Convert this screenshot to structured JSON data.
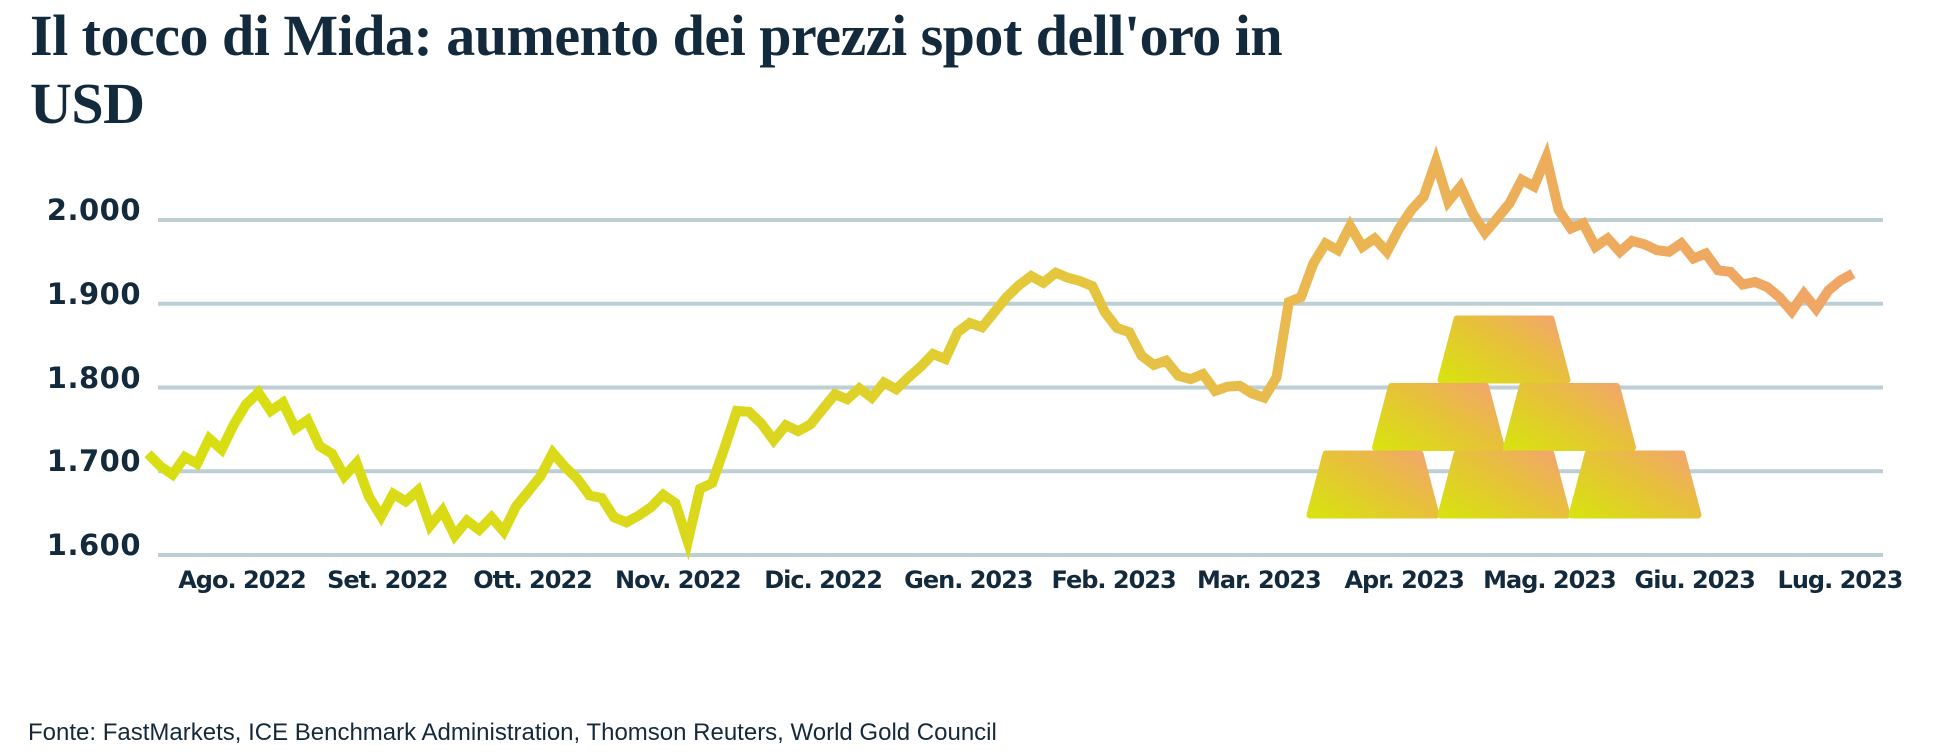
{
  "title": {
    "full": "Il tocco di Mida: aumento dei prezzi spot dell'oro in USD",
    "lines": [
      "Il tocco di Mida: aumento dei prezzi spot dell'oro in",
      "USD"
    ]
  },
  "source": "Fonte: FastMarkets, ICE Benchmark Administration, Thomson Reuters, World Gold Council",
  "colors": {
    "title_navy": "#132a3d",
    "gridline": "#bccfd4",
    "line_gradient_start": "#d8df10",
    "line_gradient_mid": "#e3ca38",
    "line_gradient_end": "#f0a566",
    "bar_gradient_start": "#d9e013",
    "bar_gradient_mid": "#e7c13a",
    "bar_gradient_end": "#f2a76b"
  },
  "illustration": {
    "name": "gold-bars-pyramid",
    "rows": [
      1,
      2,
      3
    ]
  },
  "chart_data": {
    "type": "line",
    "title": "Il tocco di Mida: aumento dei prezzi spot dell'oro in USD",
    "xlabel": "",
    "ylabel": "",
    "unit": "USD",
    "grid": "horizontal",
    "legend": false,
    "ylim": [
      1600,
      2075
    ],
    "y_gridline_range": [
      1600,
      2000
    ],
    "y_tick_values": [
      2000,
      1900,
      1800,
      1700,
      1600
    ],
    "y_tick_labels": [
      "2.000",
      "1.900",
      "1.800",
      "1.700",
      "1.600"
    ],
    "x_tick_labels": [
      "Ago. 2022",
      "Set. 2022",
      "Ott. 2022",
      "Nov. 2022",
      "Dic. 2022",
      "Gen. 2023",
      "Feb. 2023",
      "Mar. 2023",
      "Apr. 2023",
      "Mag. 2023",
      "Giu. 2023",
      "Lug. 2023"
    ],
    "series": [
      {
        "name": "Prezzo spot dell'oro in USD",
        "values": [
          1721,
          1706,
          1696,
          1717,
          1709,
          1739,
          1726,
          1756,
          1780,
          1794,
          1772,
          1782,
          1751,
          1761,
          1730,
          1721,
          1694,
          1710,
          1670,
          1646,
          1673,
          1664,
          1677,
          1635,
          1653,
          1623,
          1641,
          1630,
          1645,
          1628,
          1658,
          1676,
          1694,
          1722,
          1705,
          1691,
          1671,
          1668,
          1645,
          1639,
          1647,
          1657,
          1672,
          1662,
          1616,
          1679,
          1686,
          1728,
          1772,
          1771,
          1757,
          1737,
          1755,
          1748,
          1756,
          1774,
          1792,
          1786,
          1799,
          1788,
          1806,
          1798,
          1812,
          1825,
          1840,
          1834,
          1866,
          1877,
          1872,
          1890,
          1908,
          1922,
          1933,
          1925,
          1937,
          1931,
          1927,
          1921,
          1890,
          1871,
          1866,
          1838,
          1827,
          1832,
          1814,
          1810,
          1816,
          1796,
          1801,
          1802,
          1793,
          1788,
          1812,
          1902,
          1908,
          1948,
          1972,
          1964,
          1993,
          1968,
          1978,
          1962,
          1990,
          2012,
          2028,
          2070,
          2022,
          2040,
          2008,
          1985,
          2002,
          2020,
          2048,
          2040,
          2075,
          2012,
          1990,
          1996,
          1968,
          1978,
          1962,
          1975,
          1971,
          1964,
          1962,
          1972,
          1954,
          1960,
          1940,
          1938,
          1923,
          1926,
          1920,
          1908,
          1891,
          1912,
          1894,
          1916,
          1928,
          1936
        ]
      }
    ]
  }
}
